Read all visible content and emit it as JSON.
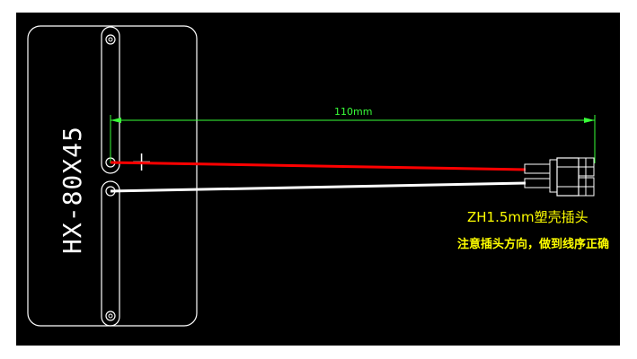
{
  "colors": {
    "background": "#000000",
    "outline": "#ffffff",
    "dimension": "#39ff39",
    "red_wire": "#ff0000",
    "white_wire": "#ffffff",
    "note_text": "#ffff00"
  },
  "heater": {
    "model": "HX-80X45"
  },
  "dimension": {
    "label": "110mm"
  },
  "polarity": {
    "positive": "+"
  },
  "connector": {
    "type_label": "ZH1.5mm塑壳插头",
    "note": "注意插头方向，做到线序正确"
  }
}
